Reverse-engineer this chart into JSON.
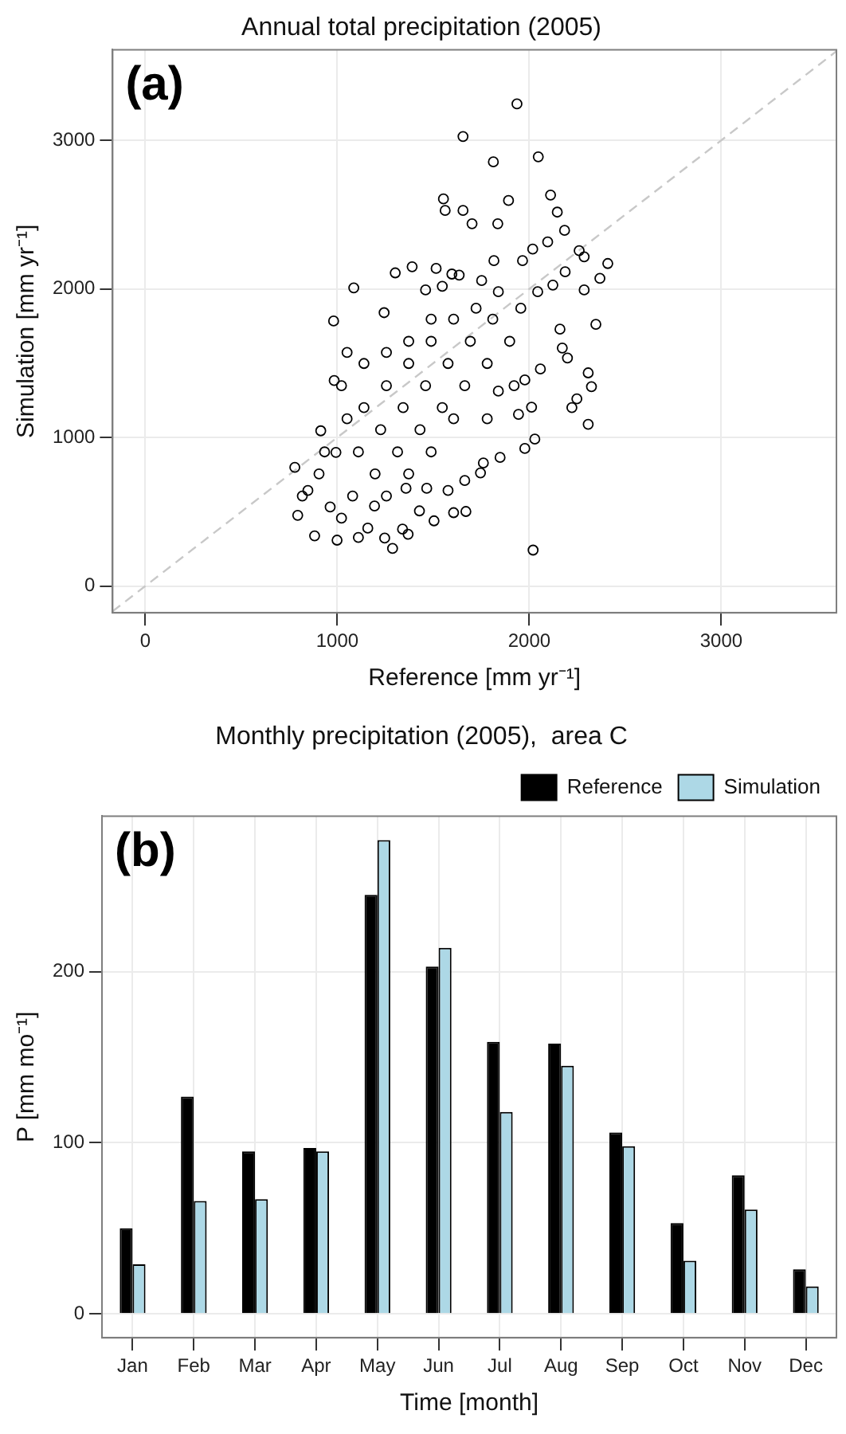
{
  "chart_data": [
    {
      "type": "scatter",
      "title": "Annual total precipitation (2005)",
      "xlabel": "Reference [mm yr⁻¹]",
      "ylabel": "Simulation [mm yr⁻¹]",
      "annotations": [
        "(a)"
      ],
      "xlim": [
        -170,
        3600
      ],
      "ylim": [
        -180,
        3610
      ],
      "xticks": [
        0,
        1000,
        2000,
        3000
      ],
      "yticks": [
        0,
        1000,
        2000,
        3000
      ],
      "grid": true,
      "legend": false,
      "series": [
        {
          "type": "scatter",
          "marker": "circle",
          "color": "#000000",
          "x": [
            1936,
            1655,
            1813,
            2047,
            1892,
            2111,
            1553,
            1562,
            1655,
            1702,
            1836,
            2146,
            2184,
            2409,
            2286,
            2260,
            2368,
            2286,
            2347,
            2307,
            2324,
            2307,
            2248,
            2222,
            2172,
            2199,
            2160,
            2020,
            2012,
            1977,
            2029,
            1086,
            981,
            984,
            914,
            779,
            794,
            882,
            999,
            1110,
            1288,
            1369,
            1504,
            1670,
            1606,
            1302,
            1390,
            1244,
            1515,
            1460,
            1597,
            1816,
            1965,
            2018,
            2096,
            2187,
            2123,
            2044,
            2058,
            1977,
            1921,
            1944,
            1848,
            1761,
            1746,
            1664,
            1577,
            1466,
            1358,
            1428,
            1194,
            1159,
            1247,
            1340,
            993,
            1051,
            1139,
            1256,
            1372,
            1489,
            1606,
            1723,
            1839,
            1956,
            1898,
            1781,
            1664,
            1547,
            1431,
            1314,
            1197,
            1080,
            963,
            905,
            847,
            934,
            1110,
            1226,
            1343,
            1460,
            1577,
            1693,
            1810,
            1489,
            1372,
            1256,
            1139,
            1051,
            1022,
            1547,
            1752,
            1635,
            1839,
            1781,
            1606,
            1489,
            1372,
            1256,
            1022,
            818
          ],
          "values": [
            3245,
            3026,
            2855,
            2889,
            2595,
            2632,
            2606,
            2528,
            2528,
            2439,
            2439,
            2517,
            2394,
            2171,
            2216,
            2257,
            2071,
            1993,
            1762,
            1435,
            1342,
            1089,
            1260,
            1201,
            1602,
            1535,
            1729,
            242,
            1204,
            926,
            989,
            2007,
            1784,
            1383,
            1045,
            799,
            476,
            338,
            309,
            327,
            253,
            349,
            439,
            502,
            494,
            2108,
            2149,
            1840,
            2138,
            1993,
            2100,
            2190,
            2190,
            2268,
            2316,
            2115,
            2026,
            1981,
            1461,
            1387,
            1349,
            1156,
            866,
            829,
            762,
            710,
            643,
            658,
            658,
            506,
            539,
            390,
            323,
            383,
            900,
            1126,
            1201,
            1349,
            1498,
            1647,
            1796,
            1870,
            1981,
            1870,
            1647,
            1498,
            1349,
            1201,
            1052,
            903,
            755,
            606,
            532,
            755,
            643,
            903,
            903,
            1052,
            1201,
            1349,
            1498,
            1647,
            1796,
            1796,
            1647,
            1572,
            1498,
            1572,
            1349,
            2018,
            2056,
            2093,
            1312,
            1126,
            1126,
            903,
            755,
            606,
            457,
            606
          ]
        },
        {
          "type": "line",
          "color": "#c8c8c8",
          "line_style": "dashed",
          "x": [
            -170,
            3600
          ],
          "values": [
            -170,
            3600
          ]
        }
      ]
    },
    {
      "type": "bar",
      "title": "Monthly precipitation (2005),  area C",
      "xlabel": "Time [month]",
      "ylabel": "P [mm mo⁻¹]",
      "annotations": [
        "(b)"
      ],
      "categories": [
        "Jan",
        "Feb",
        "Mar",
        "Apr",
        "May",
        "Jun",
        "Jul",
        "Aug",
        "Sep",
        "Oct",
        "Nov",
        "Dec"
      ],
      "ylim": [
        -14,
        291
      ],
      "yticks": [
        0,
        100,
        200
      ],
      "grid": true,
      "legend": "top right",
      "series": [
        {
          "name": "Reference",
          "color": "#000000",
          "values": [
            50,
            127,
            95,
            97,
            245,
            203,
            159,
            158,
            106,
            53,
            81,
            26
          ]
        },
        {
          "name": "Simulation",
          "color": "#add8e6",
          "values": [
            29,
            66,
            67,
            95,
            277,
            214,
            118,
            145,
            98,
            31,
            61,
            16
          ]
        }
      ]
    }
  ]
}
